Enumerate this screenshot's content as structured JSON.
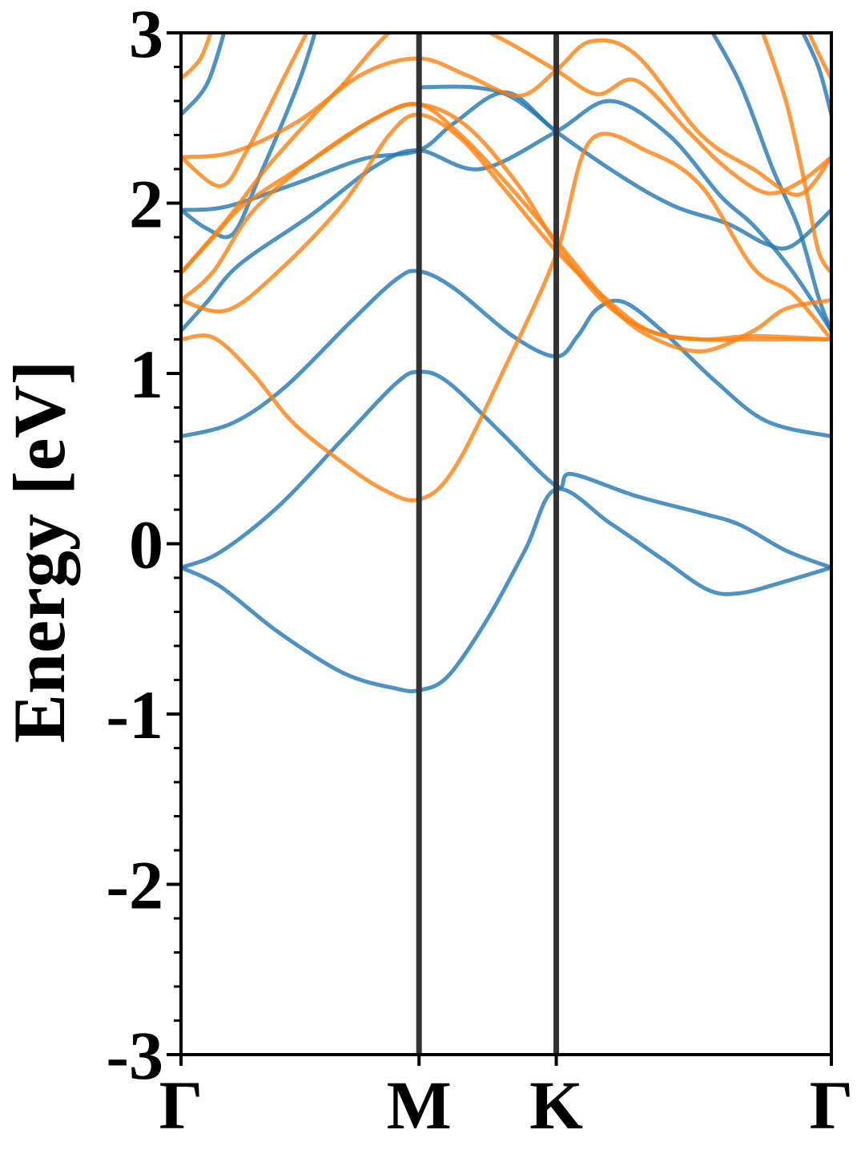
{
  "chart_data": {
    "type": "line",
    "title": "",
    "xlabel": "",
    "ylabel": "Energy [eV]",
    "ylim": [
      -3,
      3
    ],
    "x_range": [
      0,
      1
    ],
    "yticks": [
      {
        "value": 3,
        "label": "3"
      },
      {
        "value": 2,
        "label": "2"
      },
      {
        "value": 1,
        "label": "1"
      },
      {
        "value": 0,
        "label": "0"
      },
      {
        "value": -1,
        "label": "-1"
      },
      {
        "value": -2,
        "label": "-2"
      },
      {
        "value": -3,
        "label": "-3"
      }
    ],
    "yminor_step": 0.2,
    "kpoints": [
      {
        "label": "Γ",
        "x": 0.0
      },
      {
        "label": "M",
        "x": 0.366
      },
      {
        "label": "K",
        "x": 0.577
      },
      {
        "label": "Γ",
        "x": 1.0
      }
    ],
    "grid": false,
    "legend": "none",
    "series": [
      {
        "color": "#1f77b4",
        "points": [
          [
            0,
            -0.14
          ],
          [
            0.06,
            -0.25
          ],
          [
            0.15,
            -0.52
          ],
          [
            0.25,
            -0.76
          ],
          [
            0.33,
            -0.85
          ],
          [
            0.366,
            -0.86
          ],
          [
            0.41,
            -0.78
          ],
          [
            0.47,
            -0.45
          ],
          [
            0.53,
            -0.03
          ],
          [
            0.577,
            0.32
          ],
          [
            0.66,
            0.12
          ],
          [
            0.74,
            -0.09
          ],
          [
            0.81,
            -0.27
          ],
          [
            0.86,
            -0.29
          ],
          [
            0.93,
            -0.22
          ],
          [
            1.0,
            -0.14
          ]
        ]
      },
      {
        "color": "#1f77b4",
        "points": [
          [
            0,
            -0.14
          ],
          [
            0.06,
            -0.05
          ],
          [
            0.15,
            0.22
          ],
          [
            0.25,
            0.62
          ],
          [
            0.33,
            0.94
          ],
          [
            0.366,
            1.01
          ],
          [
            0.41,
            0.95
          ],
          [
            0.49,
            0.66
          ],
          [
            0.577,
            0.34
          ],
          [
            0.6,
            0.41
          ],
          [
            0.7,
            0.28
          ],
          [
            0.8,
            0.18
          ],
          [
            0.86,
            0.11
          ],
          [
            0.93,
            -0.04
          ],
          [
            1.0,
            -0.14
          ]
        ]
      },
      {
        "color": "#1f77b4",
        "points": [
          [
            0,
            0.63
          ],
          [
            0.08,
            0.71
          ],
          [
            0.16,
            0.92
          ],
          [
            0.26,
            1.3
          ],
          [
            0.33,
            1.55
          ],
          [
            0.366,
            1.6
          ],
          [
            0.42,
            1.5
          ],
          [
            0.51,
            1.22
          ],
          [
            0.577,
            1.1
          ],
          [
            0.61,
            1.22
          ],
          [
            0.64,
            1.38
          ],
          [
            0.68,
            1.42
          ],
          [
            0.74,
            1.25
          ],
          [
            0.82,
            0.96
          ],
          [
            0.9,
            0.72
          ],
          [
            1.0,
            0.63
          ]
        ]
      },
      {
        "color": "#1f77b4",
        "points": [
          [
            0,
            1.25
          ],
          [
            0.04,
            1.42
          ],
          [
            0.09,
            1.64
          ],
          [
            0.2,
            1.93
          ],
          [
            0.3,
            2.22
          ],
          [
            0.366,
            2.31
          ],
          [
            0.46,
            2.2
          ],
          [
            0.577,
            2.42
          ],
          [
            0.66,
            2.6
          ],
          [
            0.75,
            2.4
          ],
          [
            0.83,
            2.04
          ],
          [
            0.88,
            1.87
          ],
          [
            0.94,
            1.6
          ],
          [
            1.0,
            1.25
          ]
        ]
      },
      {
        "color": "#1f77b4",
        "points": [
          [
            0,
            1.96
          ],
          [
            0.07,
            1.98
          ],
          [
            0.18,
            2.12
          ],
          [
            0.28,
            2.26
          ],
          [
            0.366,
            2.31
          ],
          [
            0.42,
            2.47
          ],
          [
            0.5,
            2.65
          ],
          [
            0.577,
            2.42
          ],
          [
            0.68,
            2.15
          ],
          [
            0.76,
            1.98
          ],
          [
            0.84,
            1.88
          ],
          [
            0.9,
            1.76
          ],
          [
            0.94,
            1.75
          ],
          [
            1.0,
            1.96
          ]
        ]
      },
      {
        "color": "#1f77b4",
        "points": [
          [
            0,
            1.96
          ],
          [
            0.04,
            1.85
          ],
          [
            0.08,
            1.82
          ],
          [
            0.12,
            2.15
          ],
          [
            0.18,
            2.7
          ],
          [
            0.21,
            3.05
          ]
        ]
      },
      {
        "color": "#1f77b4",
        "points": [
          [
            0,
            2.52
          ],
          [
            0.04,
            2.7
          ],
          [
            0.07,
            3.05
          ]
        ]
      },
      {
        "color": "#1f77b4",
        "points": [
          [
            0.366,
            2.68
          ],
          [
            0.45,
            2.68
          ],
          [
            0.51,
            2.62
          ],
          [
            0.577,
            2.42
          ]
        ]
      },
      {
        "color": "#1f77b4",
        "points": [
          [
            0.81,
            3.05
          ],
          [
            0.86,
            2.7
          ],
          [
            0.91,
            2.2
          ],
          [
            0.95,
            1.85
          ],
          [
            0.98,
            1.45
          ],
          [
            1.0,
            1.25
          ]
        ]
      },
      {
        "color": "#1f77b4",
        "points": [
          [
            0.95,
            3.05
          ],
          [
            0.98,
            2.8
          ],
          [
            1.0,
            2.52
          ]
        ]
      },
      {
        "color": "#ff7f0e",
        "points": [
          [
            0,
            1.2
          ],
          [
            0.05,
            1.21
          ],
          [
            0.11,
            1.0
          ],
          [
            0.17,
            0.72
          ],
          [
            0.24,
            0.5
          ],
          [
            0.31,
            0.32
          ],
          [
            0.366,
            0.26
          ],
          [
            0.42,
            0.44
          ],
          [
            0.5,
            1.05
          ],
          [
            0.577,
            1.7
          ],
          [
            0.63,
            2.37
          ],
          [
            0.72,
            2.3
          ],
          [
            0.8,
            2.1
          ],
          [
            0.88,
            1.62
          ],
          [
            0.94,
            1.47
          ],
          [
            1.0,
            1.2
          ]
        ]
      },
      {
        "color": "#ff7f0e",
        "points": [
          [
            0,
            1.43
          ],
          [
            0.07,
            1.37
          ],
          [
            0.15,
            1.6
          ],
          [
            0.25,
            2.0
          ],
          [
            0.32,
            2.4
          ],
          [
            0.366,
            2.52
          ],
          [
            0.43,
            2.38
          ],
          [
            0.5,
            2.07
          ],
          [
            0.577,
            1.72
          ],
          [
            0.65,
            1.45
          ],
          [
            0.72,
            1.25
          ],
          [
            0.8,
            1.2
          ],
          [
            0.88,
            1.22
          ],
          [
            1.0,
            1.2
          ]
        ]
      },
      {
        "color": "#ff7f0e",
        "points": [
          [
            0,
            1.43
          ],
          [
            0.05,
            1.6
          ],
          [
            0.11,
            1.95
          ],
          [
            0.2,
            2.25
          ],
          [
            0.3,
            2.5
          ],
          [
            0.366,
            2.58
          ],
          [
            0.43,
            2.4
          ],
          [
            0.5,
            2.12
          ],
          [
            0.577,
            1.78
          ],
          [
            0.66,
            1.4
          ],
          [
            0.72,
            1.22
          ],
          [
            0.8,
            1.13
          ],
          [
            0.88,
            1.25
          ],
          [
            0.93,
            1.38
          ],
          [
            1.0,
            1.43
          ]
        ]
      },
      {
        "color": "#ff7f0e",
        "points": [
          [
            0,
            1.59
          ],
          [
            0.05,
            1.8
          ],
          [
            0.1,
            2.0
          ],
          [
            0.2,
            2.25
          ],
          [
            0.3,
            2.5
          ],
          [
            0.366,
            2.58
          ],
          [
            0.44,
            2.45
          ],
          [
            0.52,
            2.1
          ],
          [
            0.577,
            1.76
          ],
          [
            0.65,
            1.42
          ],
          [
            0.72,
            1.25
          ],
          [
            0.8,
            1.2
          ],
          [
            0.88,
            1.2
          ],
          [
            1.0,
            1.2
          ]
        ]
      },
      {
        "color": "#ff7f0e",
        "points": [
          [
            0,
            2.27
          ],
          [
            0.06,
            2.1
          ],
          [
            0.1,
            2.3
          ],
          [
            0.16,
            2.75
          ],
          [
            0.2,
            3.05
          ]
        ]
      },
      {
        "color": "#ff7f0e",
        "points": [
          [
            0,
            2.27
          ],
          [
            0.08,
            2.3
          ],
          [
            0.18,
            2.48
          ],
          [
            0.28,
            2.76
          ],
          [
            0.366,
            2.85
          ],
          [
            0.44,
            2.75
          ],
          [
            0.52,
            2.63
          ],
          [
            0.577,
            2.78
          ],
          [
            0.63,
            2.95
          ],
          [
            0.7,
            2.87
          ],
          [
            0.8,
            2.4
          ],
          [
            0.88,
            2.2
          ],
          [
            0.95,
            2.05
          ],
          [
            1.0,
            2.27
          ]
        ]
      },
      {
        "color": "#ff7f0e",
        "points": [
          [
            0.25,
            2.7
          ],
          [
            0.32,
            3.0
          ],
          [
            0.366,
            3.05
          ],
          [
            0.44,
            3.05
          ],
          [
            0.5,
            2.95
          ],
          [
            0.577,
            2.78
          ],
          [
            0.64,
            2.64
          ],
          [
            0.7,
            2.72
          ],
          [
            0.78,
            2.42
          ],
          [
            0.84,
            2.2
          ],
          [
            0.9,
            2.06
          ],
          [
            0.95,
            2.12
          ],
          [
            1.0,
            2.27
          ]
        ]
      },
      {
        "color": "#ff7f0e",
        "points": [
          [
            0,
            1.59
          ],
          [
            0.07,
            1.9
          ],
          [
            0.13,
            2.2
          ],
          [
            0.2,
            2.5
          ],
          [
            0.25,
            2.7
          ]
        ]
      },
      {
        "color": "#ff7f0e",
        "points": [
          [
            0.89,
            3.05
          ],
          [
            0.93,
            2.6
          ],
          [
            0.96,
            2.1
          ],
          [
            0.98,
            1.72
          ],
          [
            1.0,
            1.59
          ]
        ]
      },
      {
        "color": "#ff7f0e",
        "points": [
          [
            0,
            2.73
          ],
          [
            0.03,
            2.85
          ],
          [
            0.05,
            3.05
          ]
        ]
      },
      {
        "color": "#ff7f0e",
        "points": [
          [
            0.96,
            3.05
          ],
          [
            0.98,
            2.88
          ],
          [
            1.0,
            2.73
          ]
        ]
      }
    ]
  }
}
